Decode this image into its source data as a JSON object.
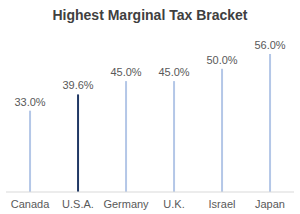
{
  "chart_data": {
    "type": "bar",
    "title": "Highest Marginal Tax Bracket",
    "categories": [
      "Canada",
      "U.S.A.",
      "Germany",
      "U.K.",
      "Israel",
      "Japan"
    ],
    "values": [
      33.0,
      39.6,
      45.0,
      45.0,
      50.0,
      56.0
    ],
    "value_labels": [
      "33.0%",
      "39.6%",
      "45.0%",
      "45.0%",
      "50.0%",
      "56.0%"
    ],
    "colors": [
      "#b4c7e7",
      "#203864",
      "#b4c7e7",
      "#b4c7e7",
      "#b4c7e7",
      "#b4c7e7"
    ],
    "data_labels": true,
    "tick_labels": "x"
  }
}
